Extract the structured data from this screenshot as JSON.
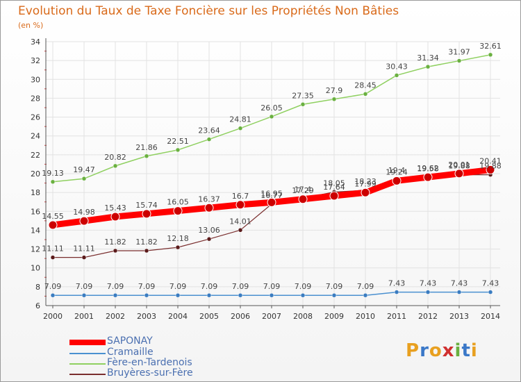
{
  "title": "Evolution du Taux de Taxe Foncière sur les Propriétés Non Bâties",
  "unit_label": "(en %)",
  "logo": {
    "letters": [
      "P",
      "r",
      "o",
      "x",
      "i",
      "t",
      "i"
    ],
    "colors": [
      "#e8a020",
      "#3a78c8",
      "#e8a020",
      "#d03030",
      "#6ab040",
      "#3a78c8",
      "#e8a020"
    ]
  },
  "chart_data": {
    "type": "line",
    "x": [
      "2000",
      "2001",
      "2002",
      "2003",
      "2004",
      "2005",
      "2006",
      "2007",
      "2008",
      "2009",
      "2010",
      "2011",
      "2012",
      "2013",
      "2014"
    ],
    "ylim": [
      6,
      34
    ],
    "yticks": [
      "6",
      "8",
      "10",
      "12",
      "14",
      "16",
      "18",
      "20",
      "22",
      "24",
      "26",
      "28",
      "30",
      "32",
      "34"
    ],
    "grid": true,
    "legend_position": "bottom-left",
    "series": [
      {
        "name": "SAPONAY",
        "color": "#ff0000",
        "values": [
          14.55,
          14.98,
          15.43,
          15.74,
          16.05,
          16.37,
          16.7,
          16.95,
          17.29,
          17.64,
          17.99,
          19.24,
          19.62,
          20.01,
          20.41
        ],
        "labels": [
          "14.55",
          "14.98",
          "15.43",
          "15.74",
          "16.05",
          "16.37",
          "16.7",
          "16.95",
          "17.29",
          "17.64",
          "17.99",
          "19.24",
          "19.62",
          "20.01",
          "20.41"
        ]
      },
      {
        "name": "Cramaille",
        "color": "#4a90d0",
        "values": [
          7.09,
          7.09,
          7.09,
          7.09,
          7.09,
          7.09,
          7.09,
          7.09,
          7.09,
          7.09,
          7.09,
          7.43,
          7.43,
          7.43,
          7.43
        ],
        "labels": [
          "7.09",
          "7.09",
          "7.09",
          "7.09",
          "7.09",
          "7.09",
          "7.09",
          "7.09",
          "7.09",
          "7.09",
          "7.09",
          "7.43",
          "7.43",
          "7.43",
          "7.43"
        ]
      },
      {
        "name": "Fère-en-Tardenois",
        "color": "#8fd060",
        "values": [
          19.13,
          19.47,
          20.82,
          21.86,
          22.51,
          23.64,
          24.81,
          26.05,
          27.35,
          27.9,
          28.45,
          30.43,
          31.34,
          31.97,
          32.61
        ],
        "labels": [
          "19.13",
          "19.47",
          "20.82",
          "21.86",
          "22.51",
          "23.64",
          "24.81",
          "26.05",
          "27.35",
          "27.9",
          "28.45",
          "30.43",
          "31.34",
          "31.97",
          "32.61"
        ]
      },
      {
        "name": "Bruyères-sur-Fère",
        "color": "#7a2e2e",
        "values": [
          11.11,
          11.11,
          11.82,
          11.82,
          12.18,
          13.06,
          14.01,
          16.77,
          17.4,
          18.05,
          18.23,
          19.4,
          19.58,
          19.88,
          19.88
        ],
        "labels": [
          "11.11",
          "11.11",
          "11.82",
          "11.82",
          "12.18",
          "13.06",
          "14.01",
          "16.77",
          "17.4",
          "18.05",
          "18.23",
          "19.4",
          "19.58",
          "19.88",
          "19.88"
        ]
      }
    ]
  }
}
